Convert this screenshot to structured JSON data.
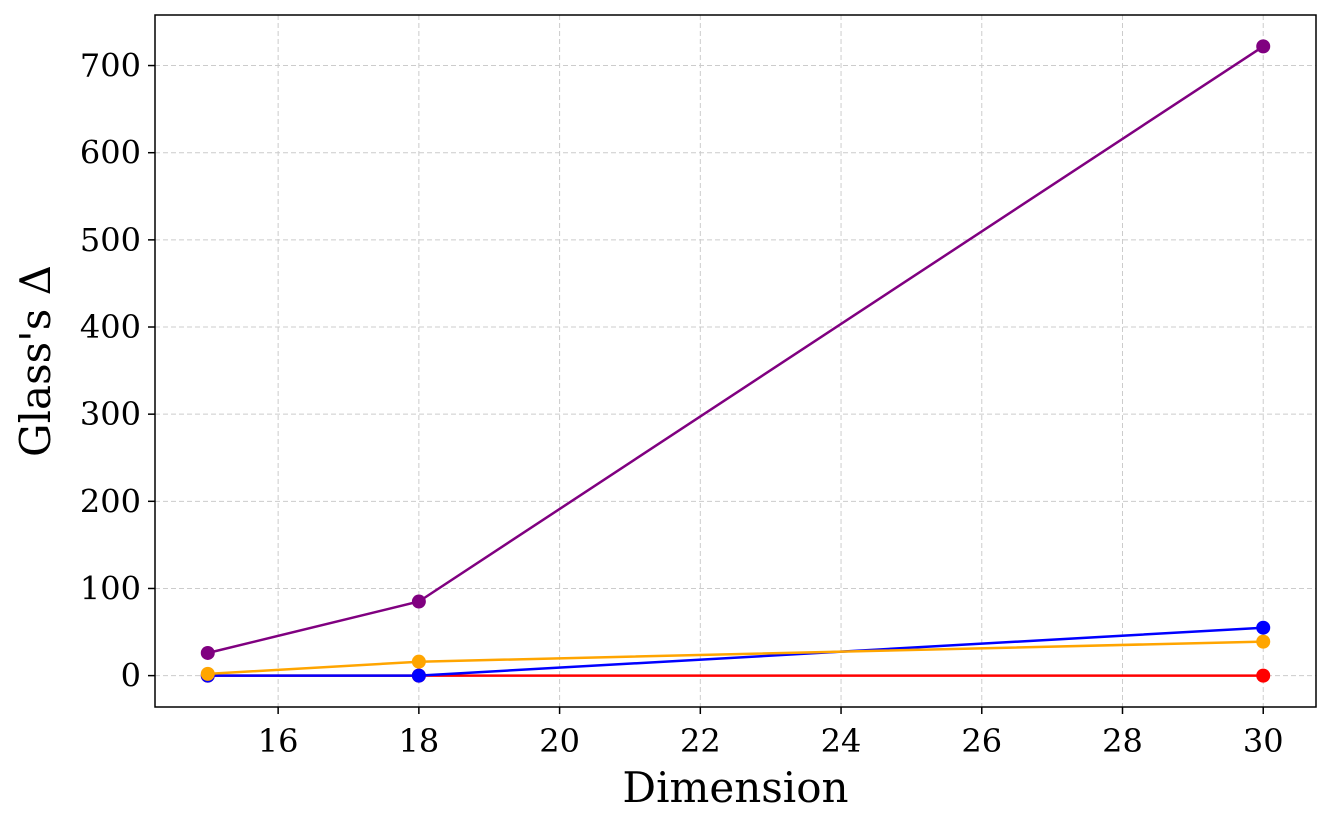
{
  "chart_data": {
    "type": "line",
    "title": "",
    "xlabel": "Dimension",
    "ylabel": "Glass's Δ",
    "xlim": [
      14.25,
      30.75
    ],
    "ylim": [
      -36,
      758
    ],
    "xticks": [
      16,
      18,
      20,
      22,
      24,
      26,
      28,
      30
    ],
    "yticks": [
      0,
      100,
      200,
      300,
      400,
      500,
      600,
      700
    ],
    "grid": true,
    "legend": "none",
    "x": [
      15,
      18,
      30
    ],
    "series": [
      {
        "color": "#800080",
        "values": [
          26,
          85,
          722
        ]
      },
      {
        "color": "#ff0000",
        "values": [
          0,
          0,
          0
        ]
      },
      {
        "color": "#0000ff",
        "values": [
          0,
          0,
          55
        ]
      },
      {
        "color": "#ffa500",
        "values": [
          2,
          16,
          39
        ]
      }
    ]
  }
}
